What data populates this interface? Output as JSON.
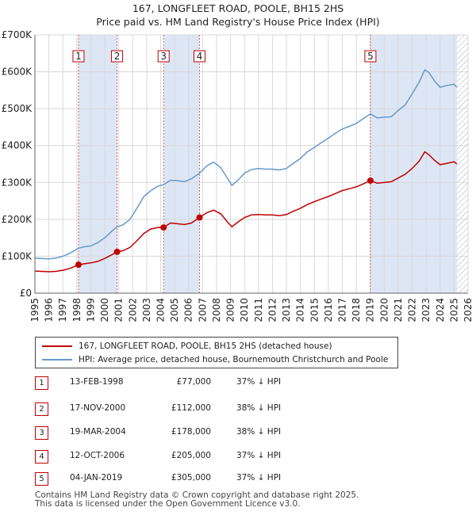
{
  "chart_data": {
    "type": "line",
    "title": "167, LONGFLEET ROAD, POOLE, BH15 2HS",
    "subtitle": "Price paid vs. HM Land Registry's House Price Index (HPI)",
    "xlim": [
      1995,
      2026
    ],
    "ylim": [
      0,
      700000
    ],
    "x_ticks": [
      1995,
      1996,
      1997,
      1998,
      1999,
      2000,
      2001,
      2002,
      2003,
      2004,
      2005,
      2006,
      2007,
      2008,
      2009,
      2010,
      2011,
      2012,
      2013,
      2014,
      2015,
      2016,
      2017,
      2018,
      2019,
      2020,
      2021,
      2022,
      2023,
      2024,
      2025,
      2026
    ],
    "y_ticks": [
      {
        "value": 0,
        "label": "£0"
      },
      {
        "value": 100000,
        "label": "£100K"
      },
      {
        "value": 200000,
        "label": "£200K"
      },
      {
        "value": 300000,
        "label": "£300K"
      },
      {
        "value": 400000,
        "label": "£400K"
      },
      {
        "value": 500000,
        "label": "£500K"
      },
      {
        "value": 600000,
        "label": "£600K"
      },
      {
        "value": 700000,
        "label": "£700K"
      }
    ],
    "shaded_bands": [
      [
        1998.12,
        2000.88
      ],
      [
        2004.21,
        2006.78
      ],
      [
        2019.01,
        2025.2
      ]
    ],
    "hatched_from": 2025.2,
    "series": [
      {
        "name": "167, LONGFLEET ROAD, POOLE, BH15 2HS (detached house)",
        "color": "#c00000",
        "points": [
          [
            1995,
            60000
          ],
          [
            1995.5,
            59000
          ],
          [
            1996,
            58000
          ],
          [
            1996.5,
            59000
          ],
          [
            1997,
            62000
          ],
          [
            1997.5,
            67000
          ],
          [
            1998.12,
            77000
          ],
          [
            1998.6,
            80000
          ],
          [
            1999,
            82000
          ],
          [
            1999.5,
            86000
          ],
          [
            2000,
            94000
          ],
          [
            2000.5,
            104000
          ],
          [
            2000.88,
            112000
          ],
          [
            2001.3,
            115000
          ],
          [
            2001.8,
            124000
          ],
          [
            2002.3,
            142000
          ],
          [
            2002.8,
            162000
          ],
          [
            2003.3,
            174000
          ],
          [
            2003.8,
            178000
          ],
          [
            2004.21,
            178000
          ],
          [
            2004.7,
            190000
          ],
          [
            2005.2,
            188000
          ],
          [
            2005.7,
            186000
          ],
          [
            2006.2,
            190000
          ],
          [
            2006.78,
            205000
          ],
          [
            2007.3,
            218000
          ],
          [
            2007.8,
            225000
          ],
          [
            2008.3,
            215000
          ],
          [
            2008.8,
            192000
          ],
          [
            2009.1,
            180000
          ],
          [
            2009.5,
            192000
          ],
          [
            2010,
            205000
          ],
          [
            2010.5,
            212000
          ],
          [
            2011,
            213000
          ],
          [
            2011.5,
            212000
          ],
          [
            2012,
            212000
          ],
          [
            2012.5,
            210000
          ],
          [
            2013,
            213000
          ],
          [
            2013.5,
            222000
          ],
          [
            2014,
            230000
          ],
          [
            2014.5,
            240000
          ],
          [
            2015,
            248000
          ],
          [
            2015.5,
            255000
          ],
          [
            2016,
            262000
          ],
          [
            2016.5,
            270000
          ],
          [
            2017,
            278000
          ],
          [
            2017.5,
            283000
          ],
          [
            2018,
            288000
          ],
          [
            2018.5,
            296000
          ],
          [
            2019.01,
            305000
          ],
          [
            2019.5,
            298000
          ],
          [
            2020,
            300000
          ],
          [
            2020.5,
            302000
          ],
          [
            2021,
            312000
          ],
          [
            2021.5,
            322000
          ],
          [
            2022,
            338000
          ],
          [
            2022.5,
            358000
          ],
          [
            2022.9,
            383000
          ],
          [
            2023.2,
            375000
          ],
          [
            2023.6,
            360000
          ],
          [
            2024,
            348000
          ],
          [
            2024.5,
            352000
          ],
          [
            2025,
            356000
          ],
          [
            2025.2,
            350000
          ]
        ]
      },
      {
        "name": "HPI: Average price, detached house, Bournemouth Christchurch and Poole",
        "color": "#6699cc",
        "points": [
          [
            1995,
            95000
          ],
          [
            1995.5,
            94000
          ],
          [
            1996,
            93000
          ],
          [
            1996.5,
            95000
          ],
          [
            1997,
            100000
          ],
          [
            1997.5,
            108000
          ],
          [
            1998.12,
            122000
          ],
          [
            1998.6,
            126000
          ],
          [
            1999,
            128000
          ],
          [
            1999.5,
            137000
          ],
          [
            2000,
            150000
          ],
          [
            2000.5,
            168000
          ],
          [
            2000.88,
            180000
          ],
          [
            2001.3,
            185000
          ],
          [
            2001.8,
            200000
          ],
          [
            2002.3,
            230000
          ],
          [
            2002.8,
            262000
          ],
          [
            2003.3,
            278000
          ],
          [
            2003.8,
            290000
          ],
          [
            2004.21,
            294000
          ],
          [
            2004.7,
            306000
          ],
          [
            2005.2,
            305000
          ],
          [
            2005.7,
            302000
          ],
          [
            2006.2,
            310000
          ],
          [
            2006.78,
            325000
          ],
          [
            2007.3,
            345000
          ],
          [
            2007.8,
            355000
          ],
          [
            2008.3,
            340000
          ],
          [
            2008.8,
            310000
          ],
          [
            2009.1,
            292000
          ],
          [
            2009.5,
            305000
          ],
          [
            2010,
            325000
          ],
          [
            2010.5,
            335000
          ],
          [
            2011,
            338000
          ],
          [
            2011.5,
            336000
          ],
          [
            2012,
            336000
          ],
          [
            2012.5,
            334000
          ],
          [
            2013,
            338000
          ],
          [
            2013.5,
            352000
          ],
          [
            2014,
            365000
          ],
          [
            2014.5,
            383000
          ],
          [
            2015,
            395000
          ],
          [
            2015.5,
            408000
          ],
          [
            2016,
            420000
          ],
          [
            2016.5,
            433000
          ],
          [
            2017,
            445000
          ],
          [
            2017.5,
            452000
          ],
          [
            2018,
            460000
          ],
          [
            2018.5,
            473000
          ],
          [
            2019.01,
            486000
          ],
          [
            2019.5,
            475000
          ],
          [
            2020,
            477000
          ],
          [
            2020.5,
            478000
          ],
          [
            2021,
            495000
          ],
          [
            2021.5,
            510000
          ],
          [
            2022,
            540000
          ],
          [
            2022.5,
            572000
          ],
          [
            2022.9,
            605000
          ],
          [
            2023.2,
            598000
          ],
          [
            2023.6,
            575000
          ],
          [
            2024,
            558000
          ],
          [
            2024.5,
            563000
          ],
          [
            2025,
            566000
          ],
          [
            2025.2,
            558000
          ]
        ]
      }
    ],
    "sales": [
      {
        "label": "1",
        "year": 1998.12,
        "price": 77000
      },
      {
        "label": "2",
        "year": 2000.88,
        "price": 112000
      },
      {
        "label": "3",
        "year": 2004.21,
        "price": 178000
      },
      {
        "label": "4",
        "year": 2006.78,
        "price": 205000
      },
      {
        "label": "5",
        "year": 2019.01,
        "price": 305000
      }
    ]
  },
  "legend": {
    "property_label": "167, LONGFLEET ROAD, POOLE, BH15 2HS (detached house)",
    "hpi_label": "HPI: Average price, detached house, Bournemouth Christchurch and Poole"
  },
  "sales_table": [
    {
      "num": "1",
      "date": "13-FEB-1998",
      "price": "£77,000",
      "hpi": "37% ↓ HPI"
    },
    {
      "num": "2",
      "date": "17-NOV-2000",
      "price": "£112,000",
      "hpi": "38% ↓ HPI"
    },
    {
      "num": "3",
      "date": "19-MAR-2004",
      "price": "£178,000",
      "hpi": "38% ↓ HPI"
    },
    {
      "num": "4",
      "date": "12-OCT-2006",
      "price": "£205,000",
      "hpi": "37% ↓ HPI"
    },
    {
      "num": "5",
      "date": "04-JAN-2019",
      "price": "£305,000",
      "hpi": "37% ↓ HPI"
    }
  ],
  "footer": {
    "line1": "Contains HM Land Registry data © Crown copyright and database right 2025.",
    "line2": "This data is licensed under the Open Government Licence v3.0."
  },
  "colors": {
    "property": "#c00000",
    "hpi": "#6699cc",
    "band": "#dde6f5",
    "grid": "#d9d9d9"
  }
}
